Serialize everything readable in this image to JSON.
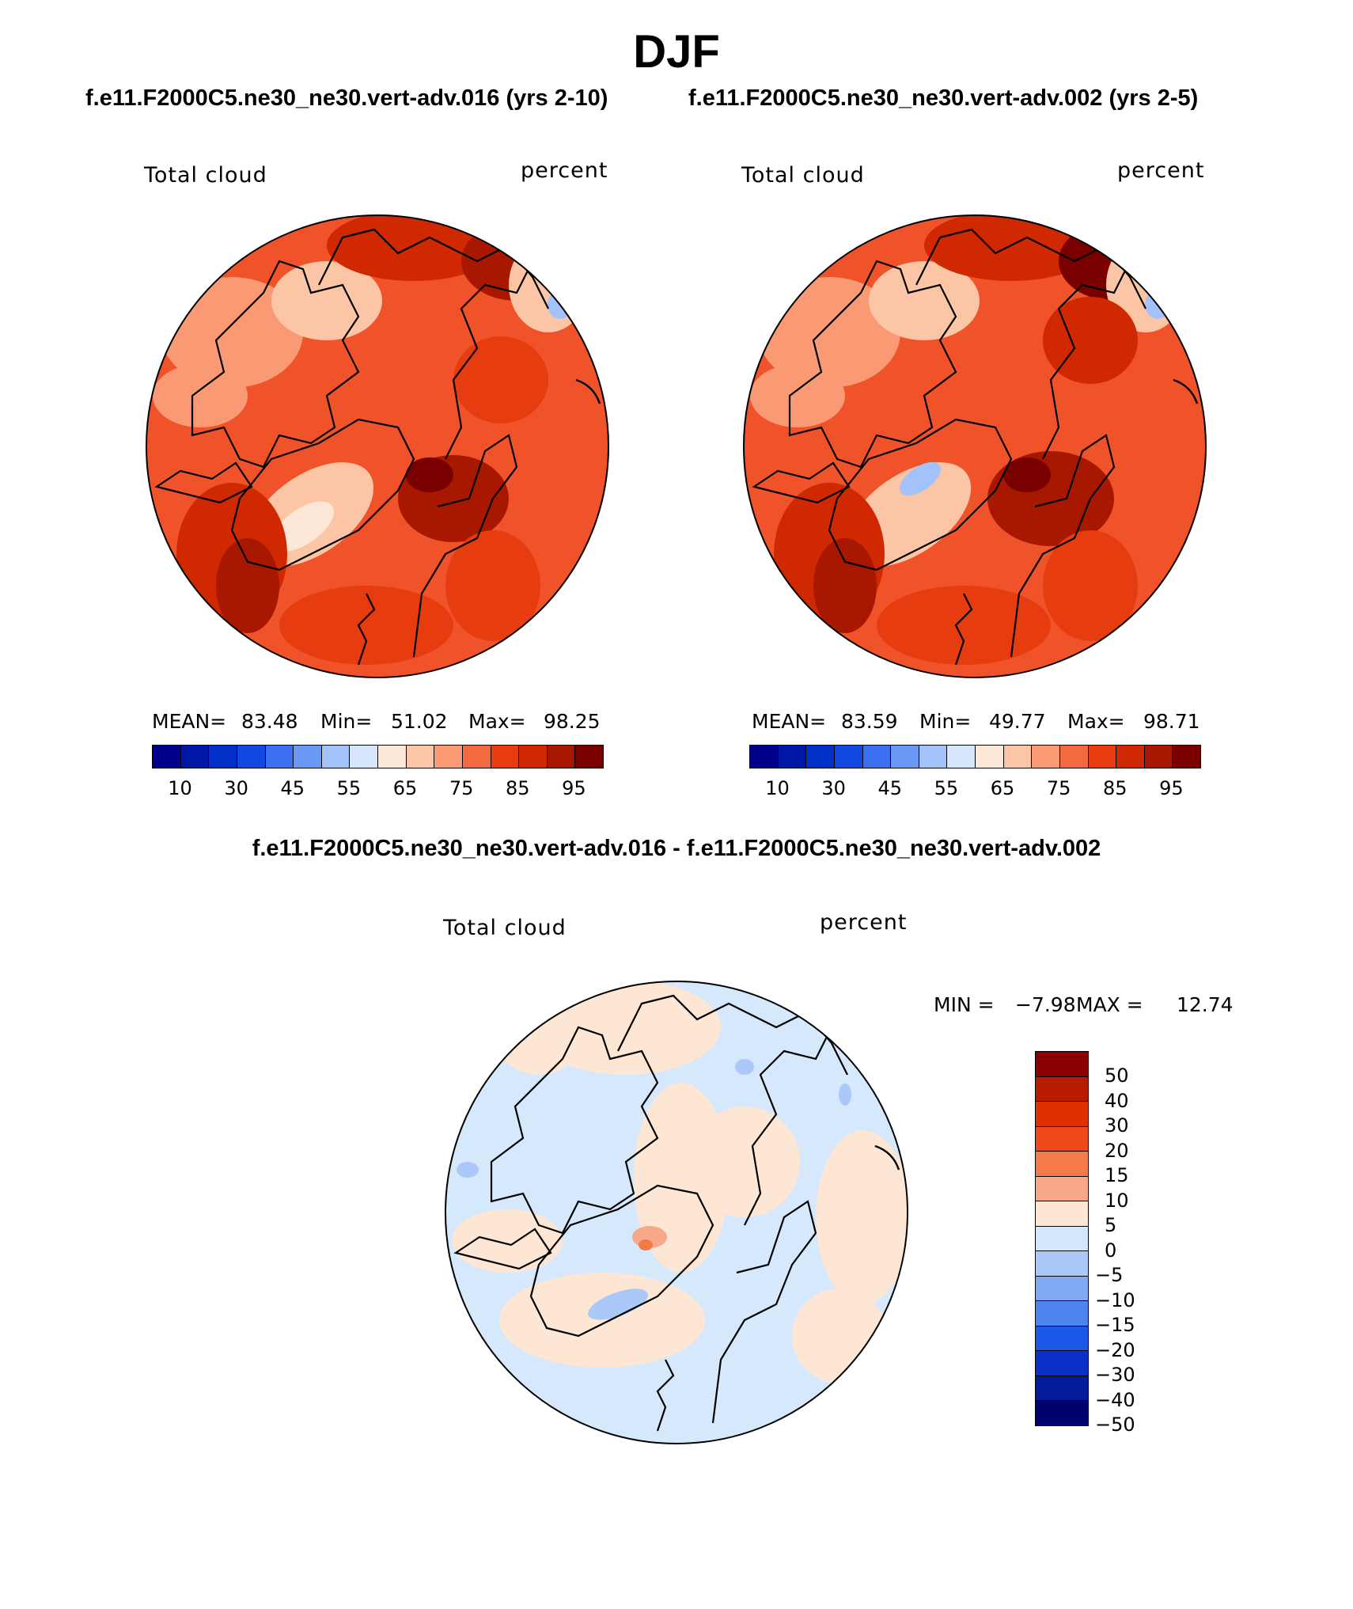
{
  "season": "DJF",
  "case1_title": "f.e11.F2000C5.ne30_ne30.vert-adv.016 (yrs 2-10)",
  "case2_title": "f.e11.F2000C5.ne30_ne30.vert-adv.002 (yrs 2-5)",
  "diff_title": "f.e11.F2000C5.ne30_ne30.vert-adv.016 - f.e11.F2000C5.ne30_ne30.vert-adv.002",
  "variable": "Total cloud",
  "units": "percent",
  "panel1": {
    "mean_label": "MEAN=",
    "mean": "83.48",
    "min_label": "Min=",
    "min": "51.02",
    "max_label": "Max=",
    "max": "98.25"
  },
  "panel2": {
    "mean_label": "MEAN=",
    "mean": "83.59",
    "min_label": "Min=",
    "min": "49.77",
    "max_label": "Max=",
    "max": "98.71"
  },
  "panel3": {
    "min_label": "MIN =",
    "min": "−7.98",
    "max_label": "MAX =",
    "max": "12.74"
  },
  "field_colorbar": {
    "colors": [
      "#00008c",
      "#0018a8",
      "#0030c8",
      "#1048e0",
      "#3a70f0",
      "#6a98f5",
      "#a4c2fa",
      "#d6e6fc",
      "#fde8d8",
      "#fcc6a6",
      "#f99a74",
      "#f26a40",
      "#e63c10",
      "#d02800",
      "#a81800",
      "#7a0000"
    ],
    "tick_labels": [
      "10",
      "30",
      "45",
      "55",
      "65",
      "75",
      "85",
      "95"
    ]
  },
  "diff_colorbar": {
    "colors_top_to_bottom": [
      "#8a0000",
      "#b81c00",
      "#e03000",
      "#f04818",
      "#f57a48",
      "#f7a888",
      "#fde6d4",
      "#d4e6fc",
      "#aac8f8",
      "#80aaf4",
      "#4c84f0",
      "#1c58e8",
      "#0a30c8",
      "#041c9c",
      "#00006e"
    ],
    "tick_labels": [
      "50",
      "40",
      "30",
      "20",
      "15",
      "10",
      "5",
      "0",
      "−5",
      "−10",
      "−15",
      "−20",
      "−30",
      "−40",
      "−50"
    ]
  },
  "map_colors": {
    "field_base": "#f0532a",
    "diff_base": "#d6e8fb",
    "coastline": "#000000"
  }
}
